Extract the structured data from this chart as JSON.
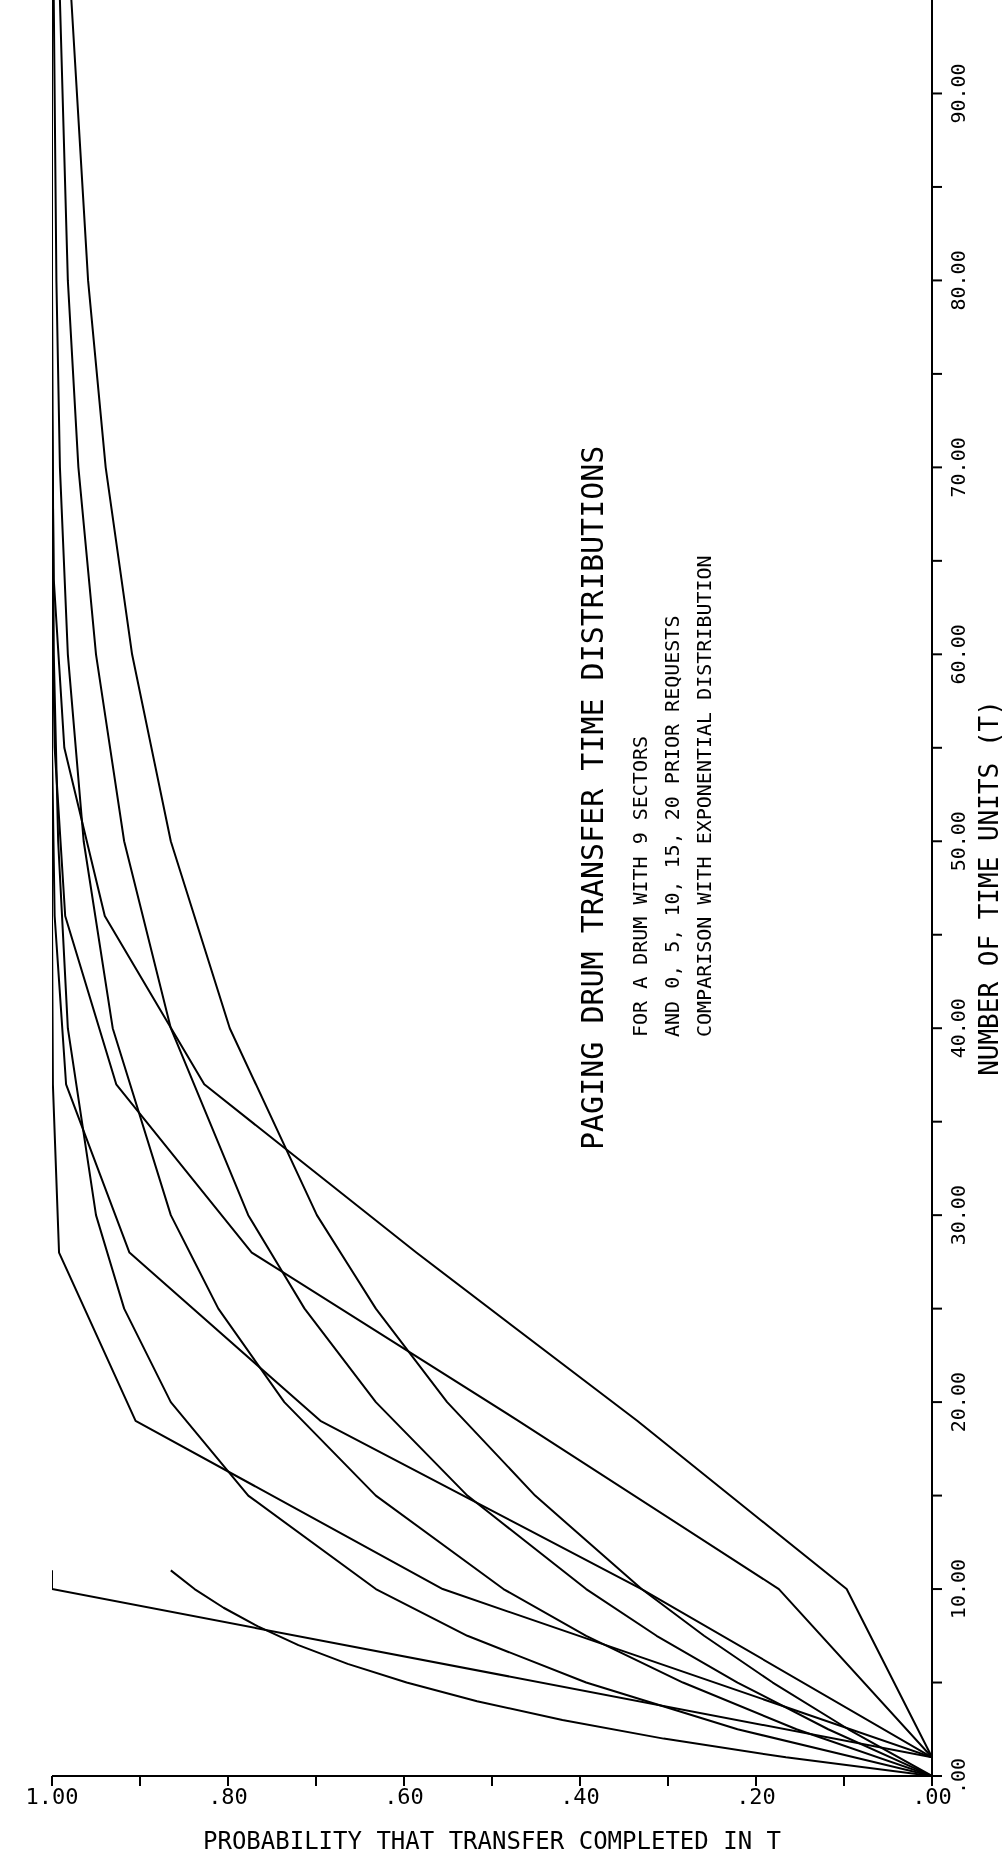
{
  "chart_data": {
    "type": "line",
    "title": "PAGING DRUM TRANSFER TIME DISTRIBUTIONS",
    "annotations": [
      "FOR A DRUM WITH 9 SECTORS",
      "AND 0, 5, 10, 15, 20 PRIOR REQUESTS",
      "COMPARISON WITH EXPONENTIAL DISTRIBUTION"
    ],
    "xlabel": "PROBABILITY THAT TRANSFER COMPLETED IN T",
    "ylabel": "NUMBER OF TIME UNITS (T)",
    "xlim": [
      1,
      0
    ],
    "ylim": [
      0,
      95
    ],
    "xticks": [
      {
        "value": 0,
        "label": ".00"
      },
      {
        "value": 0.1,
        "label": null
      },
      {
        "value": 0.2,
        "label": ".20"
      },
      {
        "value": 0.3,
        "label": null
      },
      {
        "value": 0.4,
        "label": ".40"
      },
      {
        "value": 0.5,
        "label": null
      },
      {
        "value": 0.6,
        "label": ".60"
      },
      {
        "value": 0.7,
        "label": null
      },
      {
        "value": 0.8,
        "label": ".80"
      },
      {
        "value": 0.9,
        "label": null
      },
      {
        "value": 1,
        "label": "1.00"
      }
    ],
    "yticks": [
      {
        "value": 0,
        "label": ".00"
      },
      {
        "value": 5,
        "label": null
      },
      {
        "value": 10,
        "label": "10.00"
      },
      {
        "value": 15,
        "label": null
      },
      {
        "value": 20,
        "label": "20.00"
      },
      {
        "value": 25,
        "label": null
      },
      {
        "value": 30,
        "label": "30.00"
      },
      {
        "value": 35,
        "label": null
      },
      {
        "value": 40,
        "label": "40.00"
      },
      {
        "value": 45,
        "label": null
      },
      {
        "value": 50,
        "label": "50.00"
      },
      {
        "value": 55,
        "label": null
      },
      {
        "value": 60,
        "label": "60.00"
      },
      {
        "value": 65,
        "label": null
      },
      {
        "value": 70,
        "label": "70.00"
      },
      {
        "value": 75,
        "label": null
      },
      {
        "value": 80,
        "label": "80.00"
      },
      {
        "value": 85,
        "label": null
      },
      {
        "value": 90,
        "label": "90.00"
      }
    ],
    "grid": false,
    "legend": false,
    "marker": "none",
    "line_style": "solid",
    "series": [
      {
        "color": "#000000",
        "x": [
          0,
          1,
          1
        ],
        "values": [
          1,
          10,
          11
        ]
      },
      {
        "color": "#000000",
        "x": [
          0,
          0.556,
          0.905,
          0.992,
          0.999,
          1,
          1,
          1
        ],
        "values": [
          1,
          10,
          19,
          28,
          37,
          46,
          55,
          95
        ]
      },
      {
        "color": "#000000",
        "x": [
          0,
          0.33,
          0.695,
          0.912,
          0.984,
          0.997,
          1
        ],
        "values": [
          1,
          10,
          19,
          28,
          37,
          46,
          55
        ]
      },
      {
        "color": "#000000",
        "x": [
          0,
          0.174,
          0.47,
          0.773,
          0.927,
          0.985,
          0.997,
          1
        ],
        "values": [
          1,
          10,
          19,
          28,
          37,
          46,
          55,
          64
        ]
      },
      {
        "color": "#000000",
        "x": [
          0,
          0.097,
          0.335,
          0.586,
          0.827,
          0.94,
          0.986,
          0.998,
          1
        ],
        "values": [
          1,
          10,
          19,
          28,
          37,
          46,
          55,
          64,
          73
        ]
      },
      {
        "color": "#000000",
        "x": [
          0,
          0.166,
          0.305,
          0.42,
          0.517,
          0.597,
          0.664,
          0.72,
          0.766,
          0.805,
          0.838,
          0.865
        ],
        "values": [
          0,
          1,
          2,
          3,
          4,
          5,
          6,
          7,
          8,
          9,
          10,
          11
        ]
      },
      {
        "color": "#000000",
        "x": [
          0,
          0.221,
          0.393,
          0.528,
          0.632,
          0.777,
          0.865,
          0.918,
          0.95,
          0.982,
          0.993,
          0.998,
          0.999,
          1
        ],
        "values": [
          0,
          2.5,
          5,
          7.5,
          10,
          15,
          20,
          25,
          30,
          40,
          50,
          60,
          70,
          80
        ]
      },
      {
        "color": "#000000",
        "x": [
          0,
          0.154,
          0.283,
          0.393,
          0.487,
          0.632,
          0.736,
          0.811,
          0.865,
          0.931,
          0.964,
          0.982,
          0.991,
          0.995,
          0.998
        ],
        "values": [
          0,
          2.5,
          5,
          7.5,
          10,
          15,
          20,
          25,
          30,
          40,
          50,
          60,
          70,
          80,
          95
        ]
      },
      {
        "color": "#000000",
        "x": [
          0,
          0.118,
          0.221,
          0.313,
          0.393,
          0.528,
          0.632,
          0.713,
          0.777,
          0.865,
          0.918,
          0.95,
          0.97,
          0.982,
          0.991
        ],
        "values": [
          0,
          2.5,
          5,
          7.5,
          10,
          15,
          20,
          25,
          30,
          40,
          50,
          60,
          70,
          80,
          95
        ]
      },
      {
        "color": "#000000",
        "x": [
          0,
          0.095,
          0.181,
          0.259,
          0.33,
          0.451,
          0.551,
          0.632,
          0.699,
          0.798,
          0.865,
          0.909,
          0.939,
          0.959,
          0.978
        ],
        "values": [
          0,
          2.5,
          5,
          7.5,
          10,
          15,
          20,
          25,
          30,
          40,
          50,
          60,
          70,
          80,
          95
        ]
      }
    ]
  }
}
